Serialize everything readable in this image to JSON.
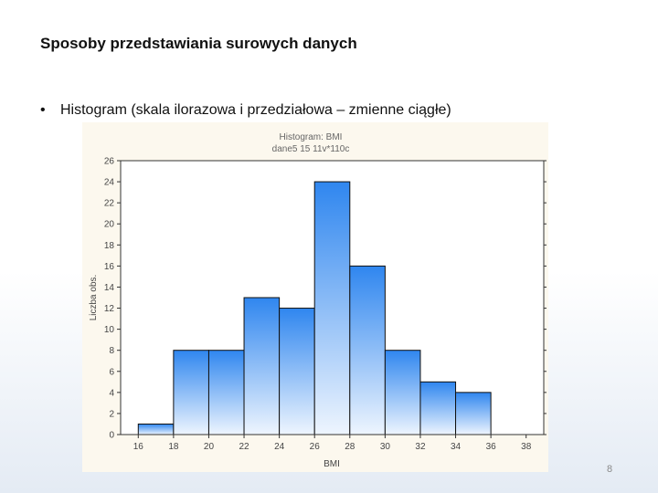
{
  "slide": {
    "title": "Sposoby przedstawiania surowych danych",
    "bullet_symbol": "•",
    "bullet_text": "Histogram (skala ilorazowa i przedziałowa – zmienne ciągłe)",
    "page_number": "8"
  },
  "chart_data": {
    "type": "bar",
    "title": "Histogram: BMI",
    "subtitle": "dane5 15 11v*110c",
    "xlabel": "BMI",
    "ylabel": "Liczba obs.",
    "bins": [
      {
        "from": 16,
        "to": 18,
        "count": 1
      },
      {
        "from": 18,
        "to": 20,
        "count": 8
      },
      {
        "from": 20,
        "to": 22,
        "count": 8
      },
      {
        "from": 22,
        "to": 24,
        "count": 13
      },
      {
        "from": 24,
        "to": 26,
        "count": 12
      },
      {
        "from": 26,
        "to": 28,
        "count": 24
      },
      {
        "from": 28,
        "to": 30,
        "count": 16
      },
      {
        "from": 30,
        "to": 32,
        "count": 8
      },
      {
        "from": 32,
        "to": 34,
        "count": 5
      },
      {
        "from": 34,
        "to": 36,
        "count": 4
      },
      {
        "from": 36,
        "to": 38,
        "count": 0
      }
    ],
    "x_ticks": [
      16,
      18,
      20,
      22,
      24,
      26,
      28,
      30,
      32,
      34,
      36,
      38
    ],
    "y_ticks": [
      0,
      2,
      4,
      6,
      8,
      10,
      12,
      14,
      16,
      18,
      20,
      22,
      24,
      26
    ],
    "xlim": [
      15,
      39
    ],
    "ylim": [
      0,
      26
    ],
    "grid": false,
    "colors": {
      "bar_top": "#2f86ef",
      "bar_bottom": "#eef5fe",
      "bar_stroke": "#111111",
      "axis": "#333333",
      "panel": "#fcf8ee",
      "title_text": "#666666"
    }
  }
}
